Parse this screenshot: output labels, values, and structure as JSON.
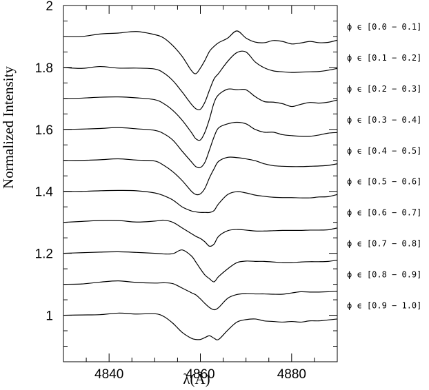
{
  "chart_data": {
    "type": "line",
    "title": "",
    "xlabel": "λ(Å)",
    "ylabel": "Normalized Intensity",
    "xlim": [
      4830,
      4890
    ],
    "ylim": [
      0.85,
      2.0
    ],
    "x_ticks": [
      4840,
      4860,
      4880
    ],
    "y_ticks": [
      1,
      1.2,
      1.4,
      1.6,
      1.8,
      2
    ],
    "x_tick_labels": [
      "4840",
      "4860",
      "4880"
    ],
    "y_tick_labels": [
      "1",
      "1.2",
      "1.4",
      "1.6",
      "1.8",
      "2"
    ],
    "grid": false,
    "x": [
      4830,
      4834,
      4838,
      4842,
      4846,
      4850,
      4852,
      4854,
      4856,
      4858,
      4859,
      4860,
      4861,
      4862,
      4863,
      4864,
      4866,
      4868,
      4870,
      4872,
      4874,
      4876,
      4878,
      4880,
      4882,
      4884,
      4886,
      4888,
      4890
    ],
    "series": [
      {
        "name": "ϕ ϵ [0.0 − 0.1]",
        "values": [
          1.9,
          1.9,
          1.908,
          1.911,
          1.916,
          1.906,
          1.895,
          1.87,
          1.836,
          1.791,
          1.78,
          1.798,
          1.823,
          1.852,
          1.868,
          1.88,
          1.895,
          1.918,
          1.895,
          1.882,
          1.88,
          1.887,
          1.884,
          1.876,
          1.879,
          1.884,
          1.88,
          1.881,
          1.888
        ]
      },
      {
        "name": "ϕ ϵ [0.1 − 0.2]",
        "values": [
          1.8,
          1.797,
          1.803,
          1.798,
          1.798,
          1.795,
          1.782,
          1.757,
          1.721,
          1.682,
          1.667,
          1.665,
          1.688,
          1.727,
          1.763,
          1.781,
          1.82,
          1.848,
          1.85,
          1.818,
          1.799,
          1.789,
          1.786,
          1.784,
          1.785,
          1.786,
          1.787,
          1.791,
          1.797
        ]
      },
      {
        "name": "ϕ ϵ [0.2 − 0.3]",
        "values": [
          1.7,
          1.701,
          1.704,
          1.705,
          1.702,
          1.696,
          1.683,
          1.661,
          1.63,
          1.591,
          1.57,
          1.566,
          1.591,
          1.634,
          1.686,
          1.712,
          1.73,
          1.728,
          1.728,
          1.706,
          1.69,
          1.688,
          1.683,
          1.674,
          1.681,
          1.687,
          1.685,
          1.688,
          1.695
        ]
      },
      {
        "name": "ϕ ϵ [0.3 − 0.4]",
        "values": [
          1.6,
          1.601,
          1.603,
          1.606,
          1.602,
          1.597,
          1.586,
          1.565,
          1.53,
          1.496,
          1.48,
          1.477,
          1.494,
          1.534,
          1.576,
          1.605,
          1.618,
          1.623,
          1.618,
          1.6,
          1.591,
          1.591,
          1.583,
          1.58,
          1.578,
          1.578,
          1.582,
          1.588,
          1.59
        ]
      },
      {
        "name": "ϕ ϵ [0.4 − 0.5]",
        "values": [
          1.5,
          1.5,
          1.502,
          1.505,
          1.501,
          1.498,
          1.484,
          1.463,
          1.435,
          1.401,
          1.39,
          1.392,
          1.41,
          1.444,
          1.473,
          1.497,
          1.51,
          1.509,
          1.505,
          1.499,
          1.489,
          1.483,
          1.481,
          1.48,
          1.48,
          1.481,
          1.482,
          1.484,
          1.489
        ]
      },
      {
        "name": "ϕ ϵ [0.5 − 0.6]",
        "values": [
          1.4,
          1.4,
          1.402,
          1.403,
          1.402,
          1.395,
          1.386,
          1.372,
          1.35,
          1.337,
          1.334,
          1.332,
          1.332,
          1.332,
          1.338,
          1.36,
          1.39,
          1.399,
          1.395,
          1.388,
          1.384,
          1.381,
          1.38,
          1.38,
          1.379,
          1.379,
          1.382,
          1.383,
          1.39
        ]
      },
      {
        "name": "ϕ ϵ [0.6 − 0.7]",
        "values": [
          1.3,
          1.303,
          1.306,
          1.306,
          1.301,
          1.304,
          1.307,
          1.3,
          1.282,
          1.264,
          1.255,
          1.248,
          1.237,
          1.223,
          1.23,
          1.255,
          1.273,
          1.277,
          1.275,
          1.272,
          1.272,
          1.273,
          1.274,
          1.274,
          1.274,
          1.275,
          1.275,
          1.276,
          1.282
        ]
      },
      {
        "name": "ϕ ϵ [0.7 − 0.8]",
        "values": [
          1.2,
          1.202,
          1.204,
          1.205,
          1.203,
          1.2,
          1.198,
          1.199,
          1.211,
          1.192,
          1.172,
          1.15,
          1.13,
          1.118,
          1.108,
          1.125,
          1.15,
          1.17,
          1.175,
          1.174,
          1.174,
          1.172,
          1.17,
          1.17,
          1.172,
          1.173,
          1.173,
          1.174,
          1.178
        ]
      },
      {
        "name": "ϕ ϵ [0.8 − 0.9]",
        "values": [
          1.1,
          1.101,
          1.107,
          1.111,
          1.106,
          1.104,
          1.105,
          1.102,
          1.088,
          1.073,
          1.066,
          1.053,
          1.038,
          1.025,
          1.018,
          1.025,
          1.055,
          1.067,
          1.07,
          1.069,
          1.069,
          1.068,
          1.068,
          1.072,
          1.076,
          1.075,
          1.075,
          1.076,
          1.078
        ]
      },
      {
        "name": "ϕ ϵ [0.9 − 1.0]",
        "values": [
          1.0,
          1.001,
          1.002,
          1.007,
          1.004,
          1.005,
          0.996,
          0.974,
          0.945,
          0.926,
          0.922,
          0.922,
          0.928,
          0.934,
          0.926,
          0.922,
          0.952,
          0.978,
          0.986,
          0.988,
          0.982,
          0.98,
          0.978,
          0.98,
          0.978,
          0.982,
          0.982,
          0.985,
          0.988
        ]
      }
    ]
  }
}
